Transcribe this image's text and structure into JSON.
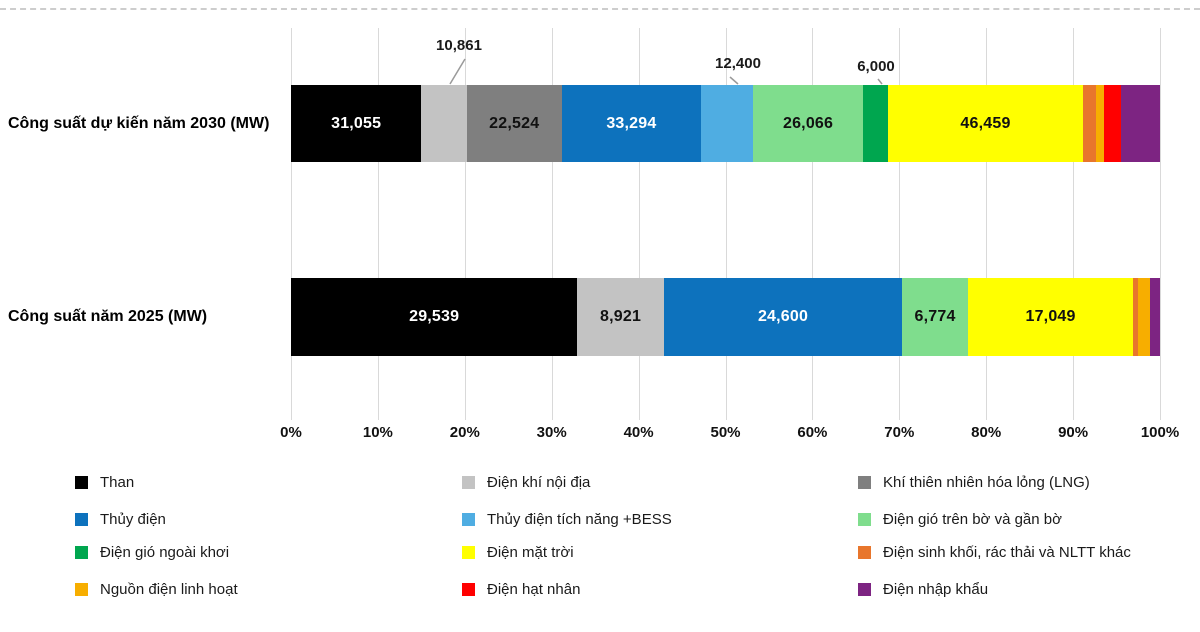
{
  "page": {
    "background": "#ffffff"
  },
  "chart_data": {
    "type": "bar",
    "orientation": "horizontal",
    "stacked": true,
    "stack_mode": "percent",
    "unit": "MW",
    "grid": true,
    "x_axis": {
      "range_pct": [
        0,
        100
      ],
      "ticks": [
        "0%",
        "10%",
        "20%",
        "30%",
        "40%",
        "50%",
        "60%",
        "70%",
        "80%",
        "90%",
        "100%"
      ]
    },
    "series": [
      {
        "name": "Than",
        "color": "#000000"
      },
      {
        "name": "Điện khí nội địa",
        "color": "#c3c3c3"
      },
      {
        "name": "Khí thiên nhiên hóa lỏng (LNG)",
        "color": "#7f7f7f"
      },
      {
        "name": "Thủy điện",
        "color": "#0d72bd"
      },
      {
        "name": "Thủy điện tích năng +BESS",
        "color": "#4fade2"
      },
      {
        "name": "Điện gió trên bờ và gần bờ",
        "color": "#7fdd8d"
      },
      {
        "name": "Điện gió ngoài khơi",
        "color": "#00a64f"
      },
      {
        "name": "Điện mặt trời",
        "color": "#ffff00"
      },
      {
        "name": "Điện sinh khối, rác thải và NLTT khác",
        "color": "#e8762c"
      },
      {
        "name": "Nguồn điện linh hoạt",
        "color": "#f7ae00"
      },
      {
        "name": "Điện hạt nhân",
        "color": "#ff0000"
      },
      {
        "name": "Điện nhập khẩu",
        "color": "#7d2482"
      }
    ],
    "bars": [
      {
        "name": "Công suất dự kiến năm 2030 (MW)",
        "segments": [
          {
            "series": "Than",
            "value": "31,055",
            "pct": 15.0,
            "label": "inside",
            "text": "light"
          },
          {
            "series": "Điện khí nội địa",
            "value": "10,861",
            "pct": 5.25,
            "label": "callout"
          },
          {
            "series": "Khí thiên nhiên hóa lỏng (LNG)",
            "value": "22,524",
            "pct": 10.88,
            "label": "inside",
            "text": "dark"
          },
          {
            "series": "Thủy điện",
            "value": "33,294",
            "pct": 16.09,
            "label": "inside",
            "text": "light"
          },
          {
            "series": "Thủy điện tích năng +BESS",
            "value": "12,400",
            "pct": 5.99,
            "label": "callout"
          },
          {
            "series": "Điện gió trên bờ và gần bờ",
            "value": "26,066",
            "pct": 12.59,
            "label": "inside",
            "text": "dark"
          },
          {
            "series": "Điện gió ngoài khơi",
            "value": "6,000",
            "pct": 2.9,
            "label": "callout"
          },
          {
            "series": "Điện mặt trời",
            "value": "46,459",
            "pct": 22.45,
            "label": "inside",
            "text": "dark"
          },
          {
            "series": "Điện sinh khối, rác thải và NLTT khác",
            "value": null,
            "pct": 1.44,
            "label": "none"
          },
          {
            "series": "Nguồn điện linh hoạt",
            "value": null,
            "pct": 0.97,
            "label": "none"
          },
          {
            "series": "Điện hạt nhân",
            "value": null,
            "pct": 1.93,
            "label": "none"
          },
          {
            "series": "Điện nhập khẩu",
            "value": null,
            "pct": 4.51,
            "label": "none"
          }
        ]
      },
      {
        "name": "Công suất năm 2025 (MW)",
        "segments": [
          {
            "series": "Than",
            "value": "29,539",
            "pct": 32.95,
            "label": "inside",
            "text": "light"
          },
          {
            "series": "Điện khí nội địa",
            "value": "8,921",
            "pct": 9.95,
            "label": "inside",
            "text": "dark"
          },
          {
            "series": "Thủy điện",
            "value": "24,600",
            "pct": 27.44,
            "label": "inside",
            "text": "light"
          },
          {
            "series": "Điện gió trên bờ và gần bờ",
            "value": "6,774",
            "pct": 7.56,
            "label": "inside",
            "text": "dark"
          },
          {
            "series": "Điện mặt trời",
            "value": "17,049",
            "pct": 19.02,
            "label": "inside",
            "text": "dark"
          },
          {
            "series": "Điện sinh khối, rác thải và NLTT khác",
            "value": null,
            "pct": 0.58,
            "label": "none"
          },
          {
            "series": "Nguồn điện linh hoạt",
            "value": null,
            "pct": 1.38,
            "label": "none"
          },
          {
            "series": "Điện nhập khẩu",
            "value": null,
            "pct": 1.12,
            "label": "none"
          }
        ]
      }
    ]
  },
  "legend": {
    "columns": [
      {
        "items": [
          "Than",
          "Thủy điện",
          "Điện gió ngoài khơi",
          "Nguồn điện linh hoạt"
        ]
      },
      {
        "items": [
          "Điện khí nội địa",
          "Thủy điện tích năng +BESS",
          "Điện mặt trời",
          "Điện hạt nhân"
        ]
      },
      {
        "items": [
          "Khí thiên nhiên hóa lỏng (LNG)",
          "Điện gió trên bờ và gần bờ",
          "Điện sinh khối, rác thải và NLTT khác",
          "Điện nhập khẩu"
        ]
      }
    ]
  }
}
